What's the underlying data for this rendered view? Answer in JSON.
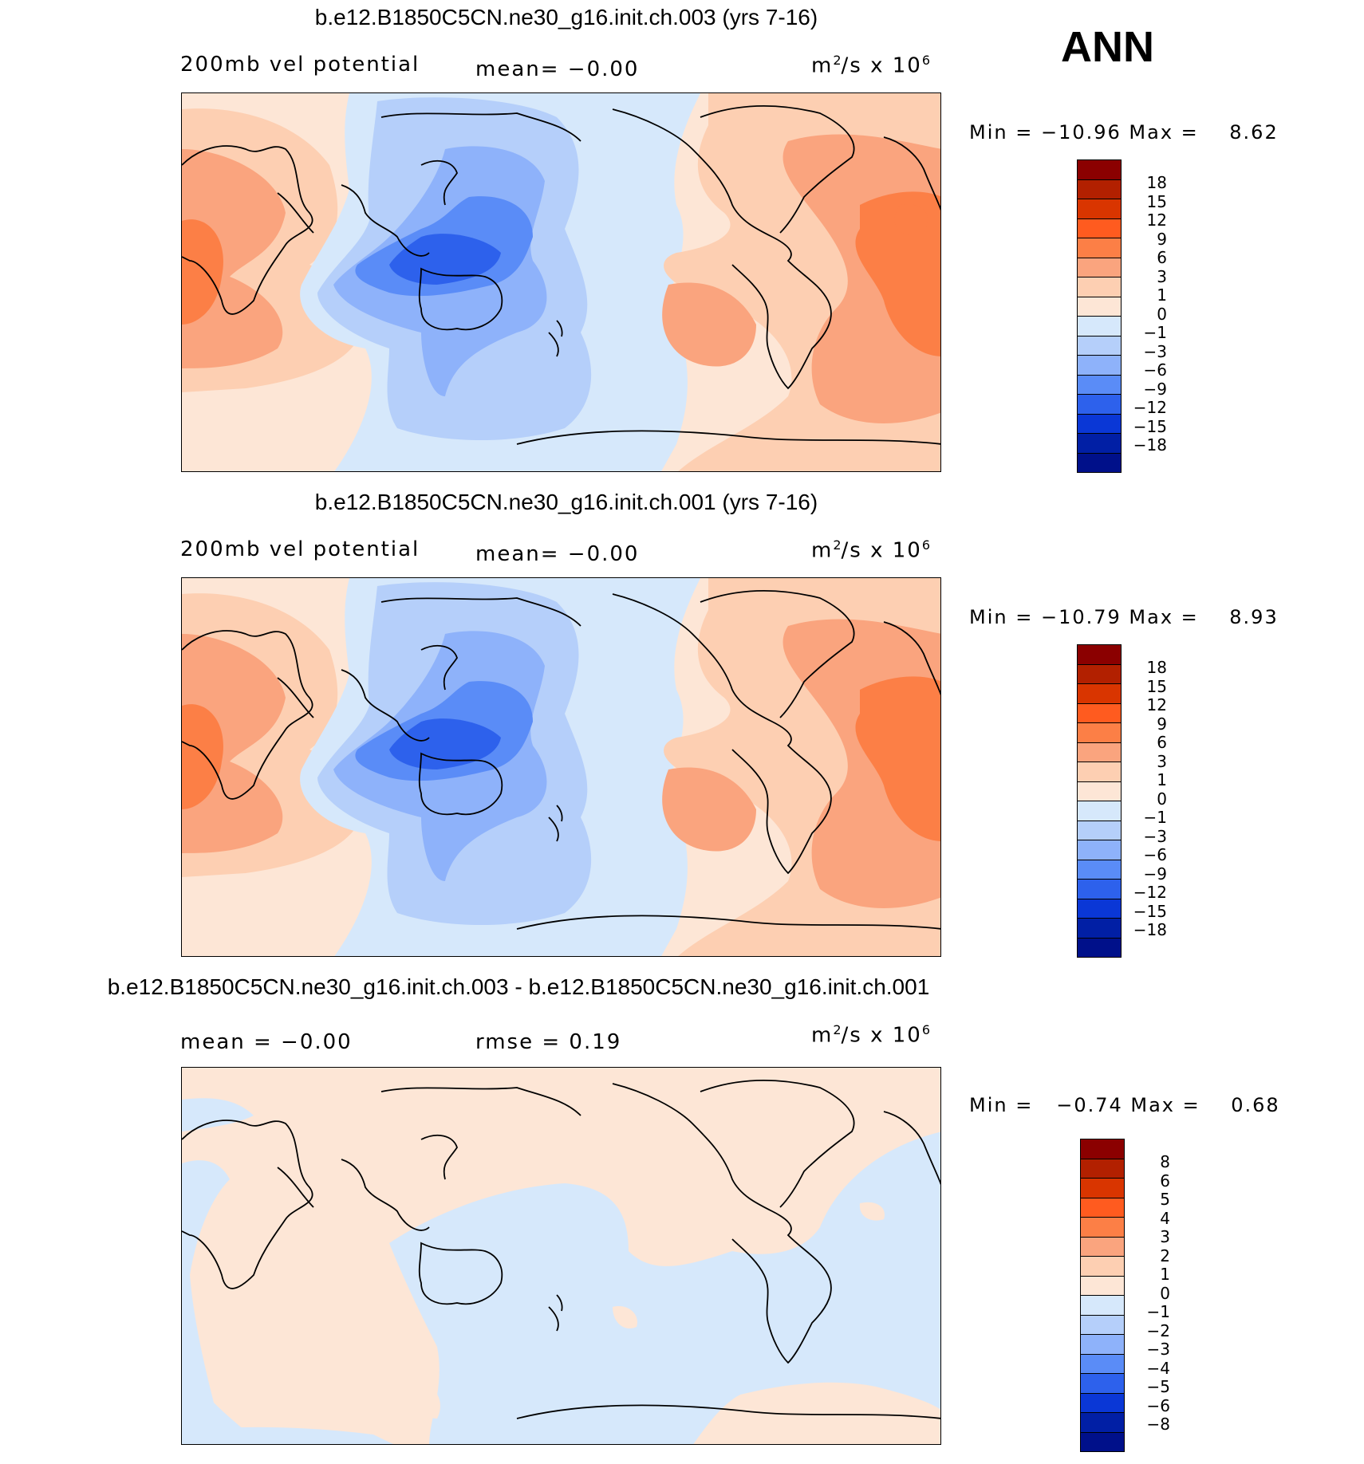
{
  "season": "ANN",
  "panels": [
    {
      "id": "p1",
      "title": "b.e12.B1850C5CN.ne30_g16.init.ch.003 (yrs 7-16)",
      "left_label": "200mb vel potential",
      "mid_label": "mean=   −0.00",
      "units_base": "m",
      "units_exp1": "2",
      "units_mid": "/s x 10",
      "units_exp2": "6",
      "minmax": "Min = −10.96 Max =    8.62",
      "levels": [
        "18",
        "15",
        "12",
        "9",
        "6",
        "3",
        "1",
        "0",
        "−1",
        "−3",
        "−6",
        "−9",
        "−12",
        "−15",
        "−18"
      ]
    },
    {
      "id": "p2",
      "title": "b.e12.B1850C5CN.ne30_g16.init.ch.001 (yrs 7-16)",
      "left_label": "200mb vel potential",
      "mid_label": "mean=   −0.00",
      "units_base": "m",
      "units_exp1": "2",
      "units_mid": "/s x 10",
      "units_exp2": "6",
      "minmax": "Min = −10.79 Max =    8.93",
      "levels": [
        "18",
        "15",
        "12",
        "9",
        "6",
        "3",
        "1",
        "0",
        "−1",
        "−3",
        "−6",
        "−9",
        "−12",
        "−15",
        "−18"
      ]
    },
    {
      "id": "p3",
      "title": "b.e12.B1850C5CN.ne30_g16.init.ch.003 - b.e12.B1850C5CN.ne30_g16.init.ch.001",
      "left_label": "mean =   −0.00",
      "mid_label": "rmse =    0.19",
      "units_base": "m",
      "units_exp1": "2",
      "units_mid": "/s x 10",
      "units_exp2": "6",
      "minmax": "Min =   −0.74 Max =    0.68",
      "levels": [
        "8",
        "6",
        "5",
        "4",
        "3",
        "2",
        "1",
        "0",
        "−1",
        "−2",
        "−3",
        "−4",
        "−5",
        "−6",
        "−8"
      ]
    }
  ],
  "colors": {
    "scale": [
      "#8b0000",
      "#b22000",
      "#d93500",
      "#ff5b1f",
      "#fc7f46",
      "#faa47e",
      "#fdcfb2",
      "#fde6d6",
      "#d6e8fb",
      "#b5cffa",
      "#8eb2fa",
      "#5a8cf7",
      "#2d61ec",
      "#0a37d6",
      "#011fa5",
      "#00108a"
    ]
  }
}
